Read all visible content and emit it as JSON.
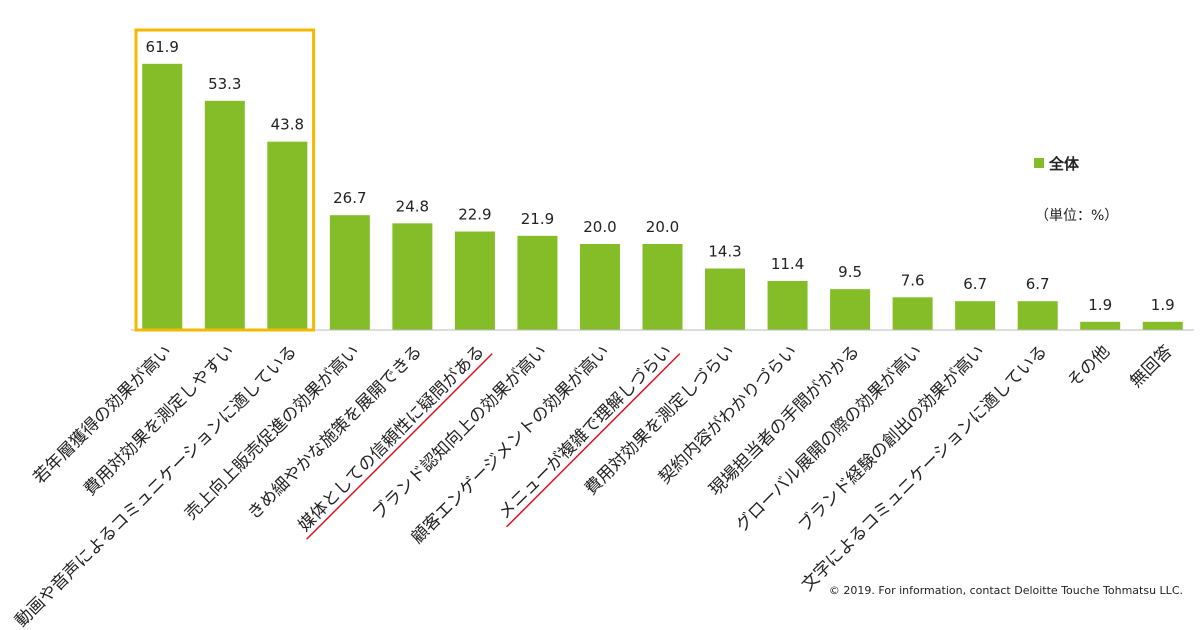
{
  "chart_data": {
    "type": "bar",
    "categories": [
      "若年層獲得の効果が高い",
      "費用対効果を測定しやすい",
      "動画や音声によるコミュニケーションに適している",
      "売上向上販売促進の効果が高い",
      "きめ細やかな施策を展開できる",
      "媒体としての信頼性に疑問がある",
      "ブランド認知向上の効果が高い",
      "顧客エンゲージメントの効果が高い",
      "メニューが複雑で理解しづらい",
      "費用対効果を測定しづらい",
      "契約内容がわかりづらい",
      "現場担当者の手間がかかる",
      "グローバル展開の際の効果が高い",
      "ブランド経験の創出の効果が高い",
      "文字によるコミュニケーションに適している",
      "その他",
      "無回答"
    ],
    "series": [
      {
        "name": "全体",
        "color": "#84bd27",
        "values": [
          61.9,
          53.3,
          43.8,
          26.7,
          24.8,
          22.9,
          21.9,
          20.0,
          20.0,
          14.3,
          11.4,
          9.5,
          7.6,
          6.7,
          6.7,
          1.9,
          1.9
        ],
        "value_labels": [
          "61.9",
          "53.3",
          "43.8",
          "26.7",
          "24.8",
          "22.9",
          "21.9",
          "20.0",
          "20.0",
          "14.3",
          "11.4",
          "9.5",
          "7.6",
          "6.7",
          "6.7",
          "1.9",
          "1.9"
        ]
      }
    ],
    "ylim": [
      0,
      70
    ],
    "unit_note": "（単位：%）",
    "footnote": "© 2019. For information, contact Deloitte Touche Tohmatsu LLC.",
    "highlight": {
      "count": 3,
      "color": "#f5b800"
    },
    "underline": {
      "categories": [
        5,
        8
      ],
      "color": "#e0141e"
    }
  }
}
